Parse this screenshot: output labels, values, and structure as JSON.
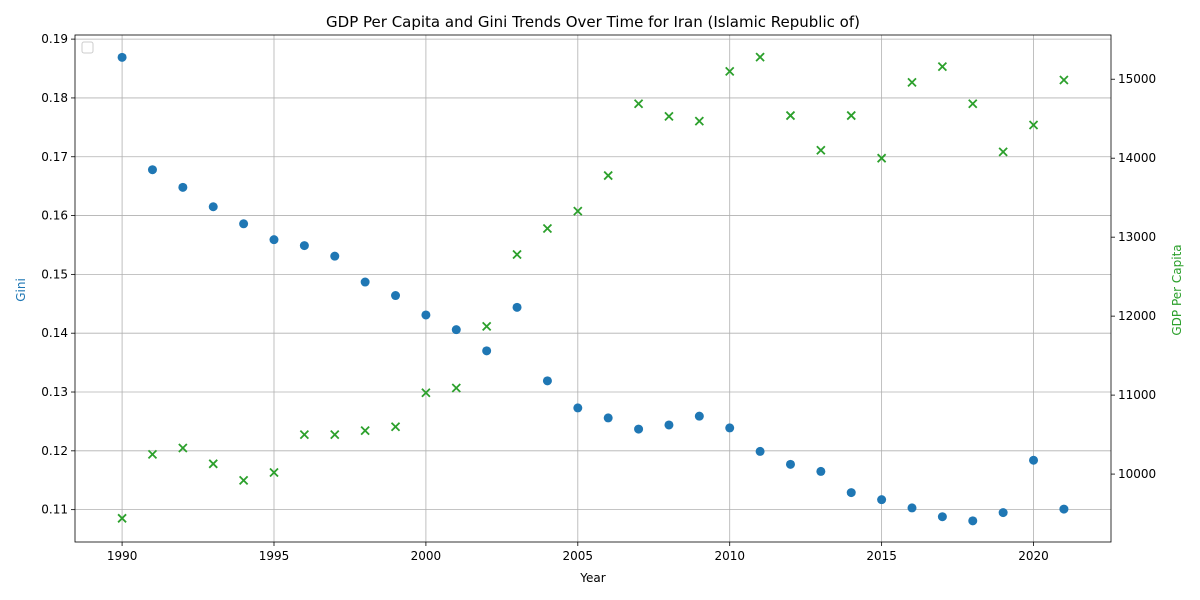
{
  "chart_data": {
    "type": "scatter",
    "title": "GDP Per Capita and Gini Trends Over Time for Iran (Islamic Republic of)",
    "xlabel": "Year",
    "ylabel_left": "Gini",
    "ylabel_right": "GDP Per Capita",
    "grid": true,
    "legend": "top-left (empty)",
    "xlim": [
      1988.45,
      2022.55
    ],
    "ylim_left": [
      0.1045,
      0.1907
    ],
    "ylim_right": [
      9140,
      15560
    ],
    "x_ticks": [
      1990,
      1995,
      2000,
      2005,
      2010,
      2015,
      2020
    ],
    "y_ticks_left": [
      0.11,
      0.12,
      0.13,
      0.14,
      0.15,
      0.16,
      0.17,
      0.18,
      0.19
    ],
    "y_ticks_right": [
      10000,
      11000,
      12000,
      13000,
      14000,
      15000
    ],
    "colors": {
      "gini": "#1f77b4",
      "gdp": "#2ca02c"
    },
    "x": [
      1990,
      1991,
      1992,
      1993,
      1994,
      1995,
      1996,
      1997,
      1998,
      1999,
      2000,
      2001,
      2002,
      2003,
      2004,
      2005,
      2006,
      2007,
      2008,
      2009,
      2010,
      2011,
      2012,
      2013,
      2014,
      2015,
      2016,
      2017,
      2018,
      2019,
      2020,
      2021
    ],
    "series": [
      {
        "axis": "left",
        "marker": "circle",
        "values": [
          0.1869,
          0.1678,
          0.1648,
          0.1615,
          0.1586,
          0.1559,
          0.1549,
          0.1531,
          0.1487,
          0.1464,
          0.1431,
          0.1406,
          0.137,
          0.1444,
          0.1319,
          0.1273,
          0.1256,
          0.1237,
          0.1244,
          0.1259,
          0.1239,
          0.1199,
          0.1177,
          0.1165,
          0.1129,
          0.1117,
          0.1103,
          0.1088,
          0.1081,
          0.1095,
          0.1184,
          0.1101
        ]
      },
      {
        "axis": "right",
        "marker": "x",
        "values": [
          9440,
          10250,
          10330,
          10130,
          9920,
          10020,
          10500,
          10500,
          10550,
          10600,
          11030,
          11090,
          11870,
          12780,
          13110,
          13330,
          13780,
          14690,
          14530,
          14470,
          15100,
          15280,
          14540,
          14100,
          14540,
          14000,
          14960,
          15160,
          14690,
          14080,
          14420,
          14990
        ]
      }
    ]
  }
}
